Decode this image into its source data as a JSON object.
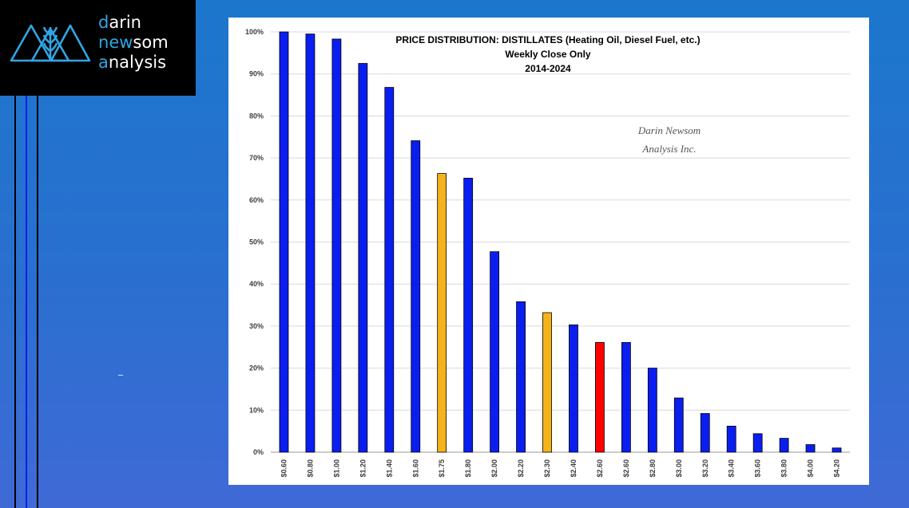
{
  "brand": {
    "line1_accent": "d",
    "line1_rest": "arin",
    "line2_pre": "n",
    "line2_accent": "ew",
    "line2_rest": "som",
    "line3_accent": "a",
    "line3_rest": "nalysis",
    "accent_color": "#2fa6e6"
  },
  "colors": {
    "blue": "#0a1ef0",
    "orange": "#f5b31b",
    "red": "#ff0000"
  },
  "chart_data": {
    "type": "bar",
    "title": "PRICE DISTRIBUTION: DISTILLATES (Heating Oil, Diesel Fuel, etc.)",
    "subtitle1": "Weekly Close Only",
    "subtitle2": "2014-2024",
    "watermark1": "Darin Newsom",
    "watermark2": "Analysis Inc.",
    "categories": [
      "$0.60",
      "$0.80",
      "$1.00",
      "$1.20",
      "$1.40",
      "$1.60",
      "$1.75",
      "$1.80",
      "$2.00",
      "$2.20",
      "$2.30",
      "$2.40",
      "$2.60",
      "$2.60",
      "$2.80",
      "$3.00",
      "$3.20",
      "$3.40",
      "$3.60",
      "$3.80",
      "$4.00",
      "$4.20"
    ],
    "values": [
      100,
      99.5,
      98.3,
      92.5,
      86.8,
      74.1,
      66.3,
      65.2,
      47.7,
      35.8,
      33.2,
      30.3,
      26.1,
      26.1,
      20.0,
      12.9,
      9.2,
      6.2,
      4.4,
      3.3,
      1.8,
      1.0
    ],
    "bar_colors": [
      "blue",
      "blue",
      "blue",
      "blue",
      "blue",
      "blue",
      "orange",
      "blue",
      "blue",
      "blue",
      "orange",
      "blue",
      "red",
      "blue",
      "blue",
      "blue",
      "blue",
      "blue",
      "blue",
      "blue",
      "blue",
      "blue"
    ],
    "yticks": [
      "0%",
      "10%",
      "20%",
      "30%",
      "40%",
      "50%",
      "60%",
      "70%",
      "80%",
      "90%",
      "100%"
    ],
    "ylim": [
      0,
      100
    ],
    "grid": true
  }
}
